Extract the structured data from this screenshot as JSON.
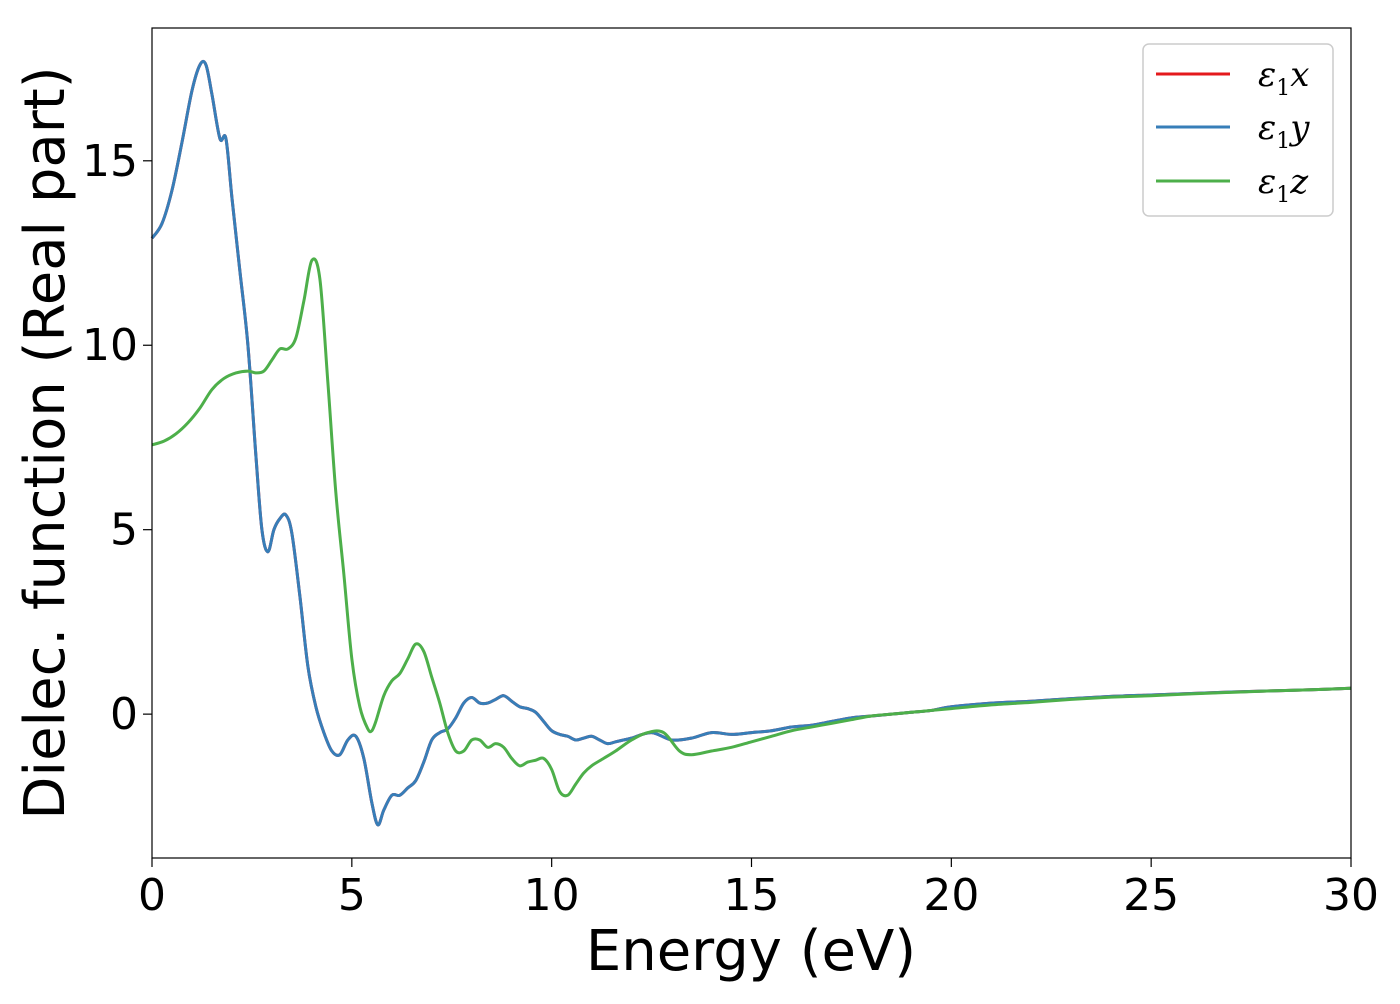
{
  "chart_data": {
    "type": "line",
    "title": "",
    "xlabel": "Energy (eV)",
    "ylabel": "Dielec. function (Real part)",
    "xlim": [
      0,
      30
    ],
    "ylim": [
      -3.9,
      18.6
    ],
    "xticks": [
      0,
      5,
      10,
      15,
      20,
      25,
      30
    ],
    "yticks": [
      0,
      5,
      10,
      15
    ],
    "grid": false,
    "legend_position": "top-right",
    "series": [
      {
        "name": "ε1x",
        "legend_main": "ε",
        "legend_sub": "1",
        "legend_tail": "x",
        "color": "#e41a1c",
        "x": [
          0,
          0.25,
          0.5,
          0.75,
          1.0,
          1.2,
          1.35,
          1.5,
          1.7,
          1.85,
          2.0,
          2.2,
          2.4,
          2.6,
          2.75,
          2.9,
          3.05,
          3.2,
          3.35,
          3.5,
          3.7,
          3.9,
          4.1,
          4.3,
          4.5,
          4.7,
          4.9,
          5.1,
          5.3,
          5.5,
          5.65,
          5.8,
          6.0,
          6.2,
          6.4,
          6.6,
          6.8,
          7.0,
          7.2,
          7.4,
          7.6,
          7.8,
          8.0,
          8.2,
          8.4,
          8.6,
          8.8,
          9.0,
          9.2,
          9.4,
          9.6,
          9.8,
          10.0,
          10.2,
          10.4,
          10.6,
          10.8,
          11.0,
          11.2,
          11.4,
          11.6,
          11.8,
          12.0,
          12.5,
          13.0,
          13.5,
          14.0,
          14.5,
          15.0,
          15.5,
          16.0,
          16.5,
          17.0,
          17.5,
          18.0,
          18.5,
          19.0,
          19.5,
          20.0,
          21.0,
          22.0,
          23.0,
          24.0,
          25.0,
          26.0,
          27.0,
          28.0,
          29.0,
          30.0
        ],
        "values": [
          12.9,
          13.3,
          14.2,
          15.5,
          16.9,
          17.6,
          17.6,
          16.8,
          15.6,
          15.6,
          14.0,
          12.0,
          10.0,
          7.0,
          5.0,
          4.4,
          5.0,
          5.3,
          5.4,
          4.9,
          3.2,
          1.3,
          0.2,
          -0.5,
          -1.0,
          -1.1,
          -0.7,
          -0.6,
          -1.2,
          -2.4,
          -3.0,
          -2.6,
          -2.2,
          -2.2,
          -2.0,
          -1.8,
          -1.3,
          -0.7,
          -0.5,
          -0.4,
          -0.1,
          0.3,
          0.45,
          0.3,
          0.3,
          0.4,
          0.5,
          0.35,
          0.2,
          0.15,
          0.05,
          -0.2,
          -0.45,
          -0.55,
          -0.6,
          -0.7,
          -0.65,
          -0.6,
          -0.7,
          -0.8,
          -0.75,
          -0.7,
          -0.65,
          -0.5,
          -0.7,
          -0.65,
          -0.5,
          -0.55,
          -0.5,
          -0.45,
          -0.35,
          -0.3,
          -0.2,
          -0.1,
          -0.05,
          0.0,
          0.05,
          0.1,
          0.2,
          0.3,
          0.35,
          0.42,
          0.48,
          0.52,
          0.56,
          0.6,
          0.63,
          0.66,
          0.7
        ]
      },
      {
        "name": "ε1y",
        "legend_main": "ε",
        "legend_sub": "1",
        "legend_tail": "y",
        "color": "#377eb8",
        "x": [
          0,
          0.25,
          0.5,
          0.75,
          1.0,
          1.2,
          1.35,
          1.5,
          1.7,
          1.85,
          2.0,
          2.2,
          2.4,
          2.6,
          2.75,
          2.9,
          3.05,
          3.2,
          3.35,
          3.5,
          3.7,
          3.9,
          4.1,
          4.3,
          4.5,
          4.7,
          4.9,
          5.1,
          5.3,
          5.5,
          5.65,
          5.8,
          6.0,
          6.2,
          6.4,
          6.6,
          6.8,
          7.0,
          7.2,
          7.4,
          7.6,
          7.8,
          8.0,
          8.2,
          8.4,
          8.6,
          8.8,
          9.0,
          9.2,
          9.4,
          9.6,
          9.8,
          10.0,
          10.2,
          10.4,
          10.6,
          10.8,
          11.0,
          11.2,
          11.4,
          11.6,
          11.8,
          12.0,
          12.5,
          13.0,
          13.5,
          14.0,
          14.5,
          15.0,
          15.5,
          16.0,
          16.5,
          17.0,
          17.5,
          18.0,
          18.5,
          19.0,
          19.5,
          20.0,
          21.0,
          22.0,
          23.0,
          24.0,
          25.0,
          26.0,
          27.0,
          28.0,
          29.0,
          30.0
        ],
        "values": [
          12.9,
          13.3,
          14.2,
          15.5,
          16.9,
          17.6,
          17.6,
          16.8,
          15.6,
          15.6,
          14.0,
          12.0,
          10.0,
          7.0,
          5.0,
          4.4,
          5.0,
          5.3,
          5.4,
          4.9,
          3.2,
          1.3,
          0.2,
          -0.5,
          -1.0,
          -1.1,
          -0.7,
          -0.6,
          -1.2,
          -2.4,
          -3.0,
          -2.6,
          -2.2,
          -2.2,
          -2.0,
          -1.8,
          -1.3,
          -0.7,
          -0.5,
          -0.4,
          -0.1,
          0.3,
          0.45,
          0.3,
          0.3,
          0.4,
          0.5,
          0.35,
          0.2,
          0.15,
          0.05,
          -0.2,
          -0.45,
          -0.55,
          -0.6,
          -0.7,
          -0.65,
          -0.6,
          -0.7,
          -0.8,
          -0.75,
          -0.7,
          -0.65,
          -0.5,
          -0.7,
          -0.65,
          -0.5,
          -0.55,
          -0.5,
          -0.45,
          -0.35,
          -0.3,
          -0.2,
          -0.1,
          -0.05,
          0.0,
          0.05,
          0.1,
          0.2,
          0.3,
          0.35,
          0.42,
          0.48,
          0.52,
          0.56,
          0.6,
          0.63,
          0.66,
          0.7
        ]
      },
      {
        "name": "ε1z",
        "legend_main": "ε",
        "legend_sub": "1",
        "legend_tail": "z",
        "color": "#4daf4a",
        "x": [
          0,
          0.3,
          0.6,
          0.9,
          1.2,
          1.5,
          1.8,
          2.1,
          2.4,
          2.6,
          2.8,
          3.0,
          3.2,
          3.4,
          3.6,
          3.8,
          4.0,
          4.2,
          4.4,
          4.6,
          4.8,
          5.0,
          5.2,
          5.4,
          5.5,
          5.6,
          5.8,
          6.0,
          6.2,
          6.4,
          6.6,
          6.8,
          7.0,
          7.2,
          7.4,
          7.6,
          7.8,
          8.0,
          8.2,
          8.4,
          8.6,
          8.8,
          9.0,
          9.2,
          9.4,
          9.6,
          9.8,
          10.0,
          10.2,
          10.4,
          10.6,
          10.8,
          11.0,
          11.3,
          11.6,
          12.0,
          12.4,
          12.8,
          13.2,
          13.5,
          14.0,
          14.5,
          15.0,
          15.5,
          16.0,
          16.5,
          17.0,
          17.5,
          18.0,
          18.5,
          19.0,
          19.5,
          20.0,
          21.0,
          22.0,
          23.0,
          24.0,
          25.0,
          26.0,
          27.0,
          28.0,
          29.0,
          30.0
        ],
        "values": [
          7.3,
          7.4,
          7.6,
          7.9,
          8.3,
          8.8,
          9.1,
          9.25,
          9.3,
          9.25,
          9.3,
          9.6,
          9.9,
          9.9,
          10.2,
          11.2,
          12.3,
          11.8,
          9.0,
          6.0,
          3.8,
          1.5,
          0.2,
          -0.4,
          -0.45,
          -0.2,
          0.5,
          0.9,
          1.1,
          1.5,
          1.9,
          1.7,
          1.0,
          0.3,
          -0.5,
          -1.0,
          -1.0,
          -0.7,
          -0.7,
          -0.9,
          -0.8,
          -0.9,
          -1.2,
          -1.4,
          -1.3,
          -1.25,
          -1.2,
          -1.5,
          -2.1,
          -2.2,
          -1.9,
          -1.6,
          -1.4,
          -1.2,
          -1.0,
          -0.7,
          -0.5,
          -0.5,
          -1.0,
          -1.1,
          -1.0,
          -0.9,
          -0.75,
          -0.6,
          -0.45,
          -0.35,
          -0.25,
          -0.15,
          -0.05,
          0.0,
          0.05,
          0.1,
          0.15,
          0.25,
          0.32,
          0.4,
          0.46,
          0.5,
          0.55,
          0.59,
          0.63,
          0.66,
          0.7
        ]
      }
    ]
  }
}
